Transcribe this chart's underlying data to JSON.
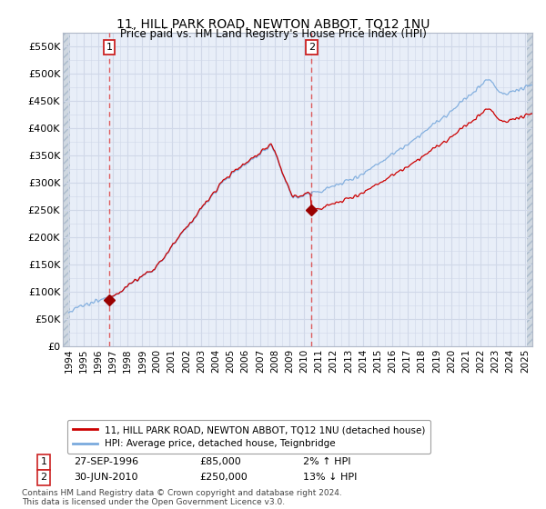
{
  "title": "11, HILL PARK ROAD, NEWTON ABBOT, TQ12 1NU",
  "subtitle": "Price paid vs. HM Land Registry's House Price Index (HPI)",
  "legend_line1": "11, HILL PARK ROAD, NEWTON ABBOT, TQ12 1NU (detached house)",
  "legend_line2": "HPI: Average price, detached house, Teignbridge",
  "sale1_date": "27-SEP-1996",
  "sale1_price": 85000,
  "sale1_hpi": "2% ↑ HPI",
  "sale2_date": "30-JUN-2010",
  "sale2_price": 250000,
  "sale2_hpi": "13% ↓ HPI",
  "copyright": "Contains HM Land Registry data © Crown copyright and database right 2024.\nThis data is licensed under the Open Government Licence v3.0.",
  "ylim": [
    0,
    575000
  ],
  "yticks": [
    0,
    50000,
    100000,
    150000,
    200000,
    250000,
    300000,
    350000,
    400000,
    450000,
    500000,
    550000
  ],
  "grid_color": "#d0d8e8",
  "line_red": "#cc0000",
  "line_blue": "#7aaadd",
  "sale_marker_color": "#990000",
  "dashed_line_color": "#dd4444",
  "background_plot": "#e8eef8",
  "background_hatch": "#d0d8e0"
}
